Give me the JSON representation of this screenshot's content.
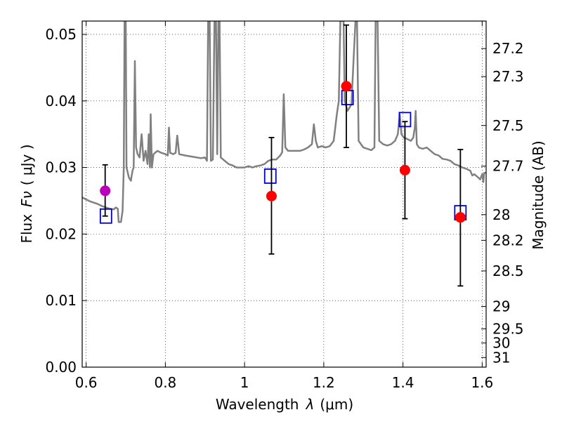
{
  "chart_data": {
    "type": "scatter",
    "xlabel": "Wavelength",
    "xlabel_symbol": "λ",
    "xlabel_unit": "(μm)",
    "ylabel": "Flux",
    "ylabel_symbol": "Fν",
    "ylabel_unit": "( μJy )",
    "ylabel_right": "Magnitude (AB)",
    "xlim": [
      0.59,
      1.61
    ],
    "ylim": [
      0.0,
      0.052
    ],
    "grid": true,
    "x_ticks": [
      {
        "value": 0.6,
        "label": "0.6"
      },
      {
        "value": 0.8,
        "label": "0.8"
      },
      {
        "value": 1.0,
        "label": "1"
      },
      {
        "value": 1.2,
        "label": "1.2"
      },
      {
        "value": 1.4,
        "label": "1.4"
      },
      {
        "value": 1.6,
        "label": "1.6"
      }
    ],
    "y_ticks": [
      {
        "value": 0.0,
        "label": "0.00"
      },
      {
        "value": 0.01,
        "label": "0.01"
      },
      {
        "value": 0.02,
        "label": "0.02"
      },
      {
        "value": 0.03,
        "label": "0.03"
      },
      {
        "value": 0.04,
        "label": "0.04"
      },
      {
        "value": 0.05,
        "label": "0.05"
      }
    ],
    "right_ticks": [
      {
        "mag": 27.2,
        "label": "27.2"
      },
      {
        "mag": 27.3,
        "label": "27.3"
      },
      {
        "mag": 27.5,
        "label": "27.5"
      },
      {
        "mag": 27.7,
        "label": "27.7"
      },
      {
        "mag": 28.0,
        "label": "28"
      },
      {
        "mag": 28.2,
        "label": "28.2"
      },
      {
        "mag": 28.5,
        "label": "28.5"
      },
      {
        "mag": 29.0,
        "label": "29"
      },
      {
        "mag": 29.5,
        "label": "29.5"
      },
      {
        "mag": 30.0,
        "label": "30"
      },
      {
        "mag": 31.0,
        "label": "31"
      }
    ],
    "model_spectrum": {
      "color": "#808080",
      "points": [
        [
          0.59,
          0.0255
        ],
        [
          0.6,
          0.0252
        ],
        [
          0.61,
          0.0249
        ],
        [
          0.62,
          0.0247
        ],
        [
          0.63,
          0.0245
        ],
        [
          0.64,
          0.0242
        ],
        [
          0.65,
          0.024
        ],
        [
          0.66,
          0.0238
        ],
        [
          0.67,
          0.0237
        ],
        [
          0.675,
          0.024
        ],
        [
          0.68,
          0.0238
        ],
        [
          0.682,
          0.0218
        ],
        [
          0.688,
          0.0218
        ],
        [
          0.692,
          0.0235
        ],
        [
          0.695,
          0.03
        ],
        [
          0.697,
          0.052
        ],
        [
          0.7,
          0.052
        ],
        [
          0.702,
          0.03
        ],
        [
          0.708,
          0.0285
        ],
        [
          0.713,
          0.028
        ],
        [
          0.717,
          0.0295
        ],
        [
          0.72,
          0.03
        ],
        [
          0.723,
          0.046
        ],
        [
          0.726,
          0.033
        ],
        [
          0.73,
          0.032
        ],
        [
          0.735,
          0.0315
        ],
        [
          0.74,
          0.035
        ],
        [
          0.745,
          0.031
        ],
        [
          0.75,
          0.0325
        ],
        [
          0.755,
          0.0305
        ],
        [
          0.758,
          0.035
        ],
        [
          0.761,
          0.03
        ],
        [
          0.763,
          0.038
        ],
        [
          0.766,
          0.03
        ],
        [
          0.77,
          0.032
        ],
        [
          0.78,
          0.0325
        ],
        [
          0.79,
          0.0322
        ],
        [
          0.8,
          0.032
        ],
        [
          0.806,
          0.0318
        ],
        [
          0.809,
          0.036
        ],
        [
          0.812,
          0.0322
        ],
        [
          0.82,
          0.032
        ],
        [
          0.826,
          0.0322
        ],
        [
          0.83,
          0.0348
        ],
        [
          0.835,
          0.032
        ],
        [
          0.85,
          0.0318
        ],
        [
          0.87,
          0.0316
        ],
        [
          0.89,
          0.0314
        ],
        [
          0.9,
          0.0315
        ],
        [
          0.905,
          0.031
        ],
        [
          0.908,
          0.052
        ],
        [
          0.912,
          0.052
        ],
        [
          0.915,
          0.031
        ],
        [
          0.92,
          0.0312
        ],
        [
          0.924,
          0.052
        ],
        [
          0.928,
          0.052
        ],
        [
          0.931,
          0.032
        ],
        [
          0.934,
          0.052
        ],
        [
          0.937,
          0.052
        ],
        [
          0.94,
          0.0315
        ],
        [
          0.95,
          0.031
        ],
        [
          0.96,
          0.0305
        ],
        [
          0.97,
          0.0303
        ],
        [
          0.98,
          0.03
        ],
        [
          0.99,
          0.03
        ],
        [
          1.0,
          0.03
        ],
        [
          1.01,
          0.0302
        ],
        [
          1.02,
          0.03
        ],
        [
          1.03,
          0.0302
        ],
        [
          1.04,
          0.0303
        ],
        [
          1.05,
          0.0305
        ],
        [
          1.06,
          0.031
        ],
        [
          1.07,
          0.0312
        ],
        [
          1.08,
          0.0312
        ],
        [
          1.09,
          0.0318
        ],
        [
          1.095,
          0.0323
        ],
        [
          1.099,
          0.041
        ],
        [
          1.103,
          0.033
        ],
        [
          1.11,
          0.0325
        ],
        [
          1.12,
          0.0325
        ],
        [
          1.13,
          0.0325
        ],
        [
          1.14,
          0.0325
        ],
        [
          1.15,
          0.0327
        ],
        [
          1.16,
          0.033
        ],
        [
          1.17,
          0.0335
        ],
        [
          1.175,
          0.0365
        ],
        [
          1.18,
          0.034
        ],
        [
          1.185,
          0.033
        ],
        [
          1.195,
          0.0332
        ],
        [
          1.205,
          0.033
        ],
        [
          1.215,
          0.0332
        ],
        [
          1.225,
          0.034
        ],
        [
          1.233,
          0.038
        ],
        [
          1.238,
          0.04
        ],
        [
          1.242,
          0.052
        ],
        [
          1.25,
          0.052
        ],
        [
          1.253,
          0.04
        ],
        [
          1.26,
          0.0385
        ],
        [
          1.265,
          0.039
        ],
        [
          1.27,
          0.0395
        ],
        [
          1.275,
          0.046
        ],
        [
          1.28,
          0.052
        ],
        [
          1.284,
          0.052
        ],
        [
          1.288,
          0.034
        ],
        [
          1.3,
          0.033
        ],
        [
          1.31,
          0.0328
        ],
        [
          1.32,
          0.0326
        ],
        [
          1.328,
          0.033
        ],
        [
          1.331,
          0.052
        ],
        [
          1.336,
          0.052
        ],
        [
          1.34,
          0.034
        ],
        [
          1.35,
          0.0335
        ],
        [
          1.36,
          0.0333
        ],
        [
          1.37,
          0.0335
        ],
        [
          1.38,
          0.034
        ],
        [
          1.387,
          0.035
        ],
        [
          1.392,
          0.038
        ],
        [
          1.396,
          0.035
        ],
        [
          1.402,
          0.0345
        ],
        [
          1.41,
          0.0343
        ],
        [
          1.42,
          0.034
        ],
        [
          1.426,
          0.0345
        ],
        [
          1.43,
          0.036
        ],
        [
          1.432,
          0.0385
        ],
        [
          1.435,
          0.0335
        ],
        [
          1.44,
          0.033
        ],
        [
          1.45,
          0.0328
        ],
        [
          1.46,
          0.033
        ],
        [
          1.47,
          0.0325
        ],
        [
          1.48,
          0.032
        ],
        [
          1.49,
          0.0318
        ],
        [
          1.5,
          0.0313
        ],
        [
          1.51,
          0.0312
        ],
        [
          1.52,
          0.031
        ],
        [
          1.53,
          0.0305
        ],
        [
          1.54,
          0.0303
        ],
        [
          1.55,
          0.03
        ],
        [
          1.56,
          0.0298
        ],
        [
          1.57,
          0.0295
        ],
        [
          1.575,
          0.0288
        ],
        [
          1.58,
          0.029
        ],
        [
          1.59,
          0.0285
        ],
        [
          1.595,
          0.0282
        ],
        [
          1.6,
          0.029
        ],
        [
          1.603,
          0.0278
        ],
        [
          1.605,
          0.0292
        ],
        [
          1.61,
          0.0292
        ]
      ]
    },
    "model_points": {
      "color": "#0000cc",
      "points": [
        [
          0.65,
          0.0227
        ],
        [
          1.065,
          0.0287
        ],
        [
          1.26,
          0.0405
        ],
        [
          1.405,
          0.0372
        ],
        [
          1.545,
          0.0232
        ]
      ]
    },
    "observed_points": [
      {
        "x": 0.648,
        "y": 0.0265,
        "ylow": 0.0227,
        "yhigh": 0.0304,
        "color": "#bb00bb"
      },
      {
        "x": 1.068,
        "y": 0.0257,
        "ylow": 0.017,
        "yhigh": 0.0345,
        "color": "#ff0000"
      },
      {
        "x": 1.257,
        "y": 0.0422,
        "ylow": 0.033,
        "yhigh": 0.0514,
        "color": "#ff0000"
      },
      {
        "x": 1.405,
        "y": 0.0296,
        "ylow": 0.0223,
        "yhigh": 0.0369,
        "color": "#ff0000"
      },
      {
        "x": 1.545,
        "y": 0.0225,
        "ylow": 0.0122,
        "yhigh": 0.0327,
        "color": "#ff0000"
      }
    ]
  }
}
